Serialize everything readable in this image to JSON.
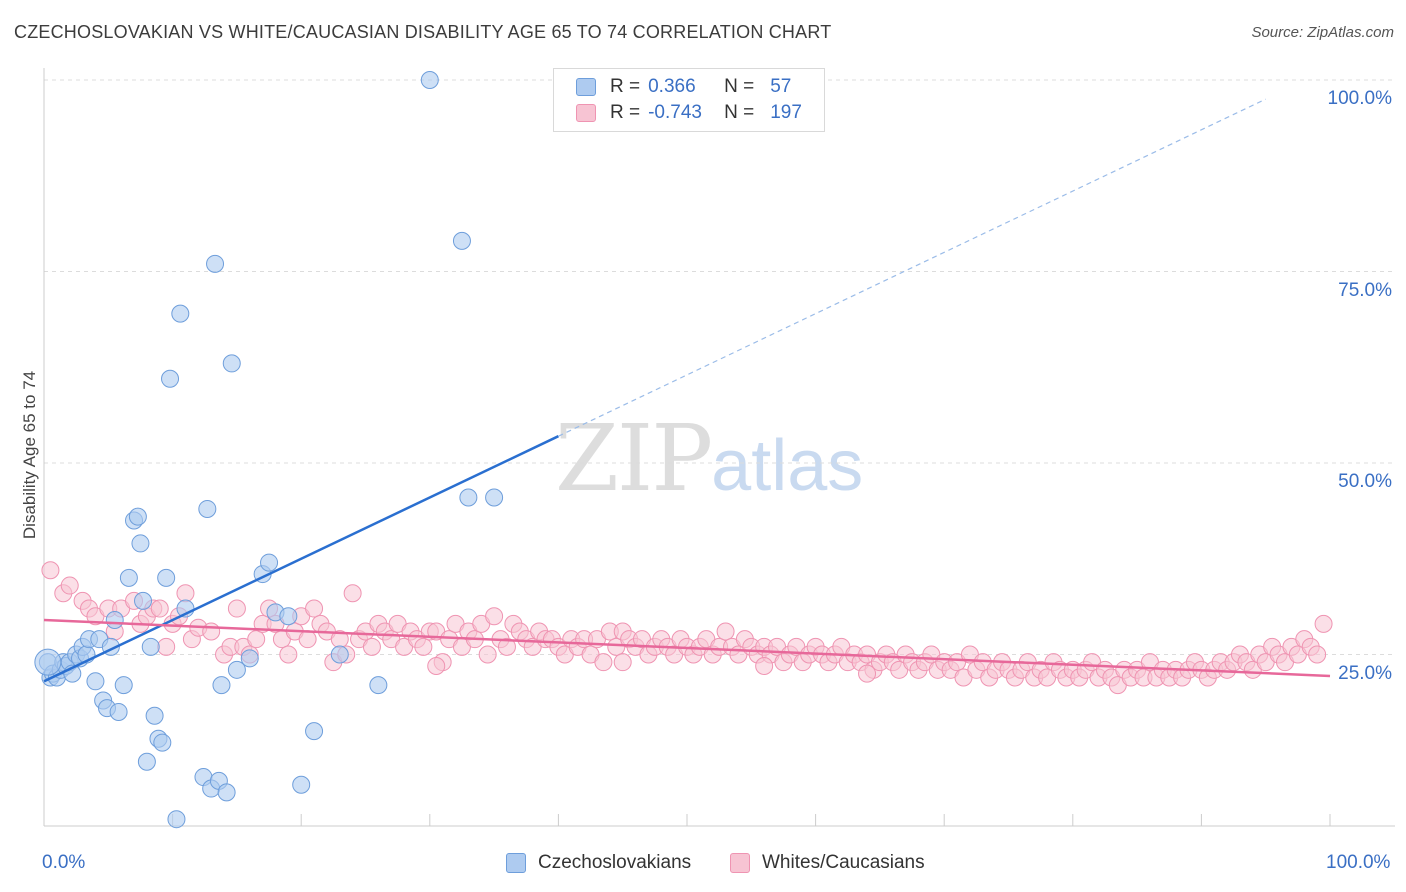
{
  "header": {
    "title": "CZECHOSLOVAKIAN VS WHITE/CAUCASIAN DISABILITY AGE 65 TO 74 CORRELATION CHART",
    "source": "Source: ZipAtlas.com"
  },
  "watermark": {
    "zip": "ZIP",
    "atlas": "atlas"
  },
  "legend": {
    "rows": [
      {
        "r_label": "R =",
        "r_value": "0.366",
        "n_label": "N =",
        "n_value": "57"
      },
      {
        "r_label": "R =",
        "r_value": "-0.743",
        "n_label": "N =",
        "n_value": "197"
      }
    ]
  },
  "bottom_legend": {
    "items": [
      "Czechoslovakians",
      "Whites/Caucasians"
    ]
  },
  "chart_data": {
    "type": "scatter",
    "xlabel": "",
    "ylabel": "Disability Age 65 to 74",
    "xlim": [
      0,
      100
    ],
    "ylim": [
      0,
      100
    ],
    "x_tick_labels": [
      "0.0%",
      "100.0%"
    ],
    "y_tick_labels": [
      {
        "value": 100,
        "label": "100.0%"
      },
      {
        "value": 75,
        "label": "75.0%"
      },
      {
        "value": 50,
        "label": "50.0%"
      },
      {
        "value": 25,
        "label": "25.0%"
      }
    ],
    "grid": "horizontal dashed",
    "legend_position": "top-center",
    "colors": {
      "czech_fill": "#aecbf0",
      "czech_stroke": "#6e9edb",
      "czech_line": "#2a6fd0",
      "white_fill": "#f7c4d3",
      "white_stroke": "#ef94b2",
      "white_line": "#e7689a"
    },
    "series": [
      {
        "name": "Czechoslovakians",
        "trend": {
          "x0": 0,
          "y0": 21.5,
          "x1": 40,
          "y1": 53.5,
          "dash_to_x": 95,
          "dash_to_y": 97.5
        },
        "points": [
          [
            0.3,
            24
          ],
          [
            0.5,
            22
          ],
          [
            0.7,
            22.5
          ],
          [
            1,
            22
          ],
          [
            1.3,
            23
          ],
          [
            1.5,
            24
          ],
          [
            1.7,
            23.5
          ],
          [
            2,
            24
          ],
          [
            2.2,
            22.5
          ],
          [
            2.5,
            25
          ],
          [
            2.8,
            24.5
          ],
          [
            3,
            26
          ],
          [
            3.3,
            25
          ],
          [
            3.5,
            27
          ],
          [
            4,
            21.5
          ],
          [
            4.3,
            27
          ],
          [
            4.6,
            19
          ],
          [
            4.9,
            18
          ],
          [
            5.2,
            26
          ],
          [
            5.5,
            29.5
          ],
          [
            5.8,
            17.5
          ],
          [
            6.2,
            21
          ],
          [
            6.6,
            35
          ],
          [
            7,
            42.5
          ],
          [
            7.3,
            43
          ],
          [
            7.5,
            39.5
          ],
          [
            7.7,
            32
          ],
          [
            8.0,
            11
          ],
          [
            8.3,
            26
          ],
          [
            8.6,
            17
          ],
          [
            8.9,
            14
          ],
          [
            9.2,
            13.5
          ],
          [
            9.5,
            35
          ],
          [
            9.8,
            61
          ],
          [
            10.3,
            3.5
          ],
          [
            10.6,
            69.5
          ],
          [
            11,
            31
          ],
          [
            12.4,
            9
          ],
          [
            12.7,
            44
          ],
          [
            13,
            7.5
          ],
          [
            13.3,
            76
          ],
          [
            13.6,
            8.5
          ],
          [
            13.8,
            21
          ],
          [
            14.2,
            7
          ],
          [
            14.6,
            63
          ],
          [
            15,
            23
          ],
          [
            16,
            24.5
          ],
          [
            17,
            35.5
          ],
          [
            17.5,
            37
          ],
          [
            18,
            30.5
          ],
          [
            19,
            30
          ],
          [
            20,
            8
          ],
          [
            21,
            15
          ],
          [
            23,
            25
          ],
          [
            26,
            21
          ],
          [
            33,
            45.5
          ],
          [
            35,
            45.5
          ],
          [
            32.5,
            79
          ],
          [
            30,
            100
          ]
        ]
      },
      {
        "name": "Whites/Caucasians",
        "trend": {
          "x0": 0,
          "y0": 29.5,
          "x1": 100,
          "y1": 22.2
        },
        "points": [
          [
            0.5,
            36
          ],
          [
            1.5,
            33
          ],
          [
            2,
            34
          ],
          [
            3,
            32
          ],
          [
            3.5,
            31
          ],
          [
            4,
            30
          ],
          [
            5,
            31
          ],
          [
            5.5,
            28
          ],
          [
            6,
            31
          ],
          [
            7,
            32
          ],
          [
            7.5,
            29
          ],
          [
            8,
            30
          ],
          [
            8.5,
            31
          ],
          [
            9,
            31
          ],
          [
            9.5,
            26
          ],
          [
            10,
            29
          ],
          [
            10.5,
            30
          ],
          [
            11,
            33
          ],
          [
            11.5,
            27
          ],
          [
            12,
            28.5
          ],
          [
            13,
            28
          ],
          [
            14,
            25
          ],
          [
            14.5,
            26
          ],
          [
            15,
            31
          ],
          [
            15.5,
            26
          ],
          [
            16,
            25
          ],
          [
            16.5,
            27
          ],
          [
            17,
            29
          ],
          [
            17.5,
            31
          ],
          [
            18,
            29
          ],
          [
            18.5,
            27
          ],
          [
            19,
            25
          ],
          [
            19.5,
            28
          ],
          [
            20,
            30
          ],
          [
            20.5,
            27
          ],
          [
            21,
            31
          ],
          [
            21.5,
            29
          ],
          [
            22,
            28
          ],
          [
            22.5,
            24
          ],
          [
            23,
            27
          ],
          [
            23.5,
            25
          ],
          [
            24,
            33
          ],
          [
            24.5,
            27
          ],
          [
            25,
            28
          ],
          [
            25.5,
            26
          ],
          [
            26,
            29
          ],
          [
            26.5,
            28
          ],
          [
            27,
            27
          ],
          [
            27.5,
            29
          ],
          [
            28,
            26
          ],
          [
            28.5,
            28
          ],
          [
            29,
            27
          ],
          [
            29.5,
            26
          ],
          [
            30,
            28
          ],
          [
            30.5,
            28
          ],
          [
            31,
            24
          ],
          [
            31.5,
            27
          ],
          [
            32,
            29
          ],
          [
            32.5,
            26
          ],
          [
            33,
            28
          ],
          [
            33.5,
            27
          ],
          [
            34,
            29
          ],
          [
            34.5,
            25
          ],
          [
            35,
            30
          ],
          [
            35.5,
            27
          ],
          [
            36,
            26
          ],
          [
            36.5,
            29
          ],
          [
            37,
            28
          ],
          [
            37.5,
            27
          ],
          [
            38,
            26
          ],
          [
            38.5,
            28
          ],
          [
            39,
            27
          ],
          [
            39.5,
            27
          ],
          [
            40,
            26
          ],
          [
            40.5,
            25
          ],
          [
            41,
            27
          ],
          [
            41.5,
            26
          ],
          [
            42,
            27
          ],
          [
            42.5,
            25
          ],
          [
            43,
            27
          ],
          [
            43.5,
            24
          ],
          [
            44,
            28
          ],
          [
            44.5,
            26
          ],
          [
            45,
            28
          ],
          [
            45.5,
            27
          ],
          [
            46,
            26
          ],
          [
            46.5,
            27
          ],
          [
            47,
            25
          ],
          [
            47.5,
            26
          ],
          [
            48,
            27
          ],
          [
            48.5,
            26
          ],
          [
            49,
            25
          ],
          [
            49.5,
            27
          ],
          [
            50,
            26
          ],
          [
            50.5,
            25
          ],
          [
            51,
            26
          ],
          [
            51.5,
            27
          ],
          [
            52,
            25
          ],
          [
            52.5,
            26
          ],
          [
            53,
            28
          ],
          [
            53.5,
            26
          ],
          [
            54,
            25
          ],
          [
            54.5,
            27
          ],
          [
            55,
            26
          ],
          [
            55.5,
            25
          ],
          [
            56,
            26
          ],
          [
            56.5,
            25
          ],
          [
            57,
            26
          ],
          [
            57.5,
            24
          ],
          [
            58,
            25
          ],
          [
            58.5,
            26
          ],
          [
            59,
            24
          ],
          [
            59.5,
            25
          ],
          [
            60,
            26
          ],
          [
            60.5,
            25
          ],
          [
            61,
            24
          ],
          [
            61.5,
            25
          ],
          [
            62,
            26
          ],
          [
            62.5,
            24
          ],
          [
            63,
            25
          ],
          [
            63.5,
            24
          ],
          [
            64,
            25
          ],
          [
            64.5,
            23
          ],
          [
            65,
            24
          ],
          [
            65.5,
            25
          ],
          [
            66,
            24
          ],
          [
            66.5,
            23
          ],
          [
            67,
            25
          ],
          [
            67.5,
            24
          ],
          [
            68,
            23
          ],
          [
            68.5,
            24
          ],
          [
            69,
            25
          ],
          [
            69.5,
            23
          ],
          [
            70,
            24
          ],
          [
            70.5,
            23
          ],
          [
            71,
            24
          ],
          [
            71.5,
            22
          ],
          [
            72,
            25
          ],
          [
            72.5,
            23
          ],
          [
            73,
            24
          ],
          [
            73.5,
            22
          ],
          [
            74,
            23
          ],
          [
            74.5,
            24
          ],
          [
            75,
            23
          ],
          [
            75.5,
            22
          ],
          [
            76,
            23
          ],
          [
            76.5,
            24
          ],
          [
            77,
            22
          ],
          [
            77.5,
            23
          ],
          [
            78,
            22
          ],
          [
            78.5,
            24
          ],
          [
            79,
            23
          ],
          [
            79.5,
            22
          ],
          [
            80,
            23
          ],
          [
            80.5,
            22
          ],
          [
            81,
            23
          ],
          [
            81.5,
            24
          ],
          [
            82,
            22
          ],
          [
            82.5,
            23
          ],
          [
            83,
            22
          ],
          [
            83.5,
            21
          ],
          [
            84,
            23
          ],
          [
            84.5,
            22
          ],
          [
            85,
            23
          ],
          [
            85.5,
            22
          ],
          [
            86,
            24
          ],
          [
            86.5,
            22
          ],
          [
            87,
            23
          ],
          [
            87.5,
            22
          ],
          [
            88,
            23
          ],
          [
            88.5,
            22
          ],
          [
            89,
            23
          ],
          [
            89.5,
            24
          ],
          [
            90,
            23
          ],
          [
            90.5,
            22
          ],
          [
            91,
            23
          ],
          [
            91.5,
            24
          ],
          [
            92,
            23
          ],
          [
            92.5,
            24
          ],
          [
            93,
            25
          ],
          [
            93.5,
            24
          ],
          [
            94,
            23
          ],
          [
            94.5,
            25
          ],
          [
            95,
            24
          ],
          [
            95.5,
            26
          ],
          [
            96,
            25
          ],
          [
            96.5,
            24
          ],
          [
            97,
            26
          ],
          [
            97.5,
            25
          ],
          [
            98,
            27
          ],
          [
            98.5,
            26
          ],
          [
            99,
            25
          ],
          [
            99.5,
            29
          ],
          [
            30.5,
            23.5
          ],
          [
            45,
            24
          ],
          [
            56,
            23.5
          ],
          [
            64,
            22.5
          ]
        ]
      }
    ]
  }
}
